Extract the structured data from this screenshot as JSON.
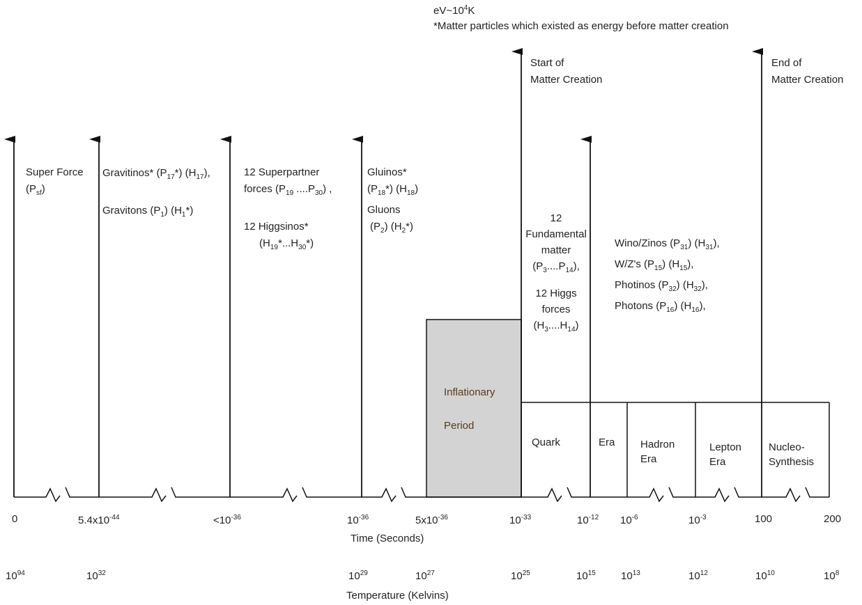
{
  "header": {
    "conversion": {
      "base": "eV~10",
      "exp": "4",
      "unit": "K"
    },
    "note": "*Matter particles which existed as energy before matter creation"
  },
  "events": {
    "start_creation": [
      "Start of",
      "Matter Creation"
    ],
    "end_creation": [
      "End of",
      "Matter Creation"
    ]
  },
  "arrow_labels": {
    "super_force": {
      "line1": "Super Force",
      "p": "(P",
      "p_sub": "sf",
      "p_end": ")"
    },
    "gravitinos": {
      "a": "Gravitinos* (P",
      "a_sub": "17",
      "b": "*) (H",
      "b_sub": "17",
      "c": "),",
      "d": "Gravitons (P",
      "d_sub": "1",
      "e": ") (H",
      "e_sub": "1",
      "f": "*)"
    },
    "superpartner": {
      "line1": "12 Superpartner",
      "a": "forces  (P",
      "a_sub": "19",
      "b": " ....P",
      "b_sub": "30",
      "c": ") ,",
      "line3": "12 Higgsinos*",
      "d": "(H",
      "d_sub": "19",
      "e": "*...H",
      "e_sub": "30",
      "f": "*)"
    },
    "gluinos": {
      "line1": "Gluinos*",
      "a": "(P",
      "a_sub": "18",
      "b": "*) (H",
      "b_sub": "18",
      "c": ")",
      "line3": "Gluons",
      "d": "(P",
      "d_sub": "2",
      "e": ") (H",
      "e_sub": "2",
      "f": "*)"
    },
    "fundamental": {
      "line1": "12",
      "line2": "Fundamental",
      "line3": "matter",
      "a": "(P",
      "a_sub": "3",
      "b": "....P",
      "b_sub": "14",
      "c": "),",
      "line5": "12 Higgs",
      "line6": "forces",
      "d": "(H",
      "d_sub": "3",
      "e": "....H",
      "e_sub": "14",
      "f": ")"
    },
    "electroweak": [
      {
        "a": "Wino/Zinos (P",
        "a_sub": "31",
        "b": ") (H",
        "b_sub": "31",
        "c": "),"
      },
      {
        "a": "W/Z's (P",
        "a_sub": "15",
        "b": ") (H",
        "b_sub": "15",
        "c": "),"
      },
      {
        "a": "Photinos (P",
        "a_sub": "32",
        "b": ") (H",
        "b_sub": "32",
        "c": "),"
      },
      {
        "a": "Photons (P",
        "a_sub": "16",
        "b": ") (H",
        "b_sub": "16",
        "c": "),"
      }
    ]
  },
  "eras": {
    "inflationary": [
      "Inflationary",
      "Period"
    ],
    "quark": "Quark",
    "era": "Era",
    "hadron": [
      "Hadron",
      "Era"
    ],
    "lepton": [
      "Lepton",
      "Era"
    ],
    "nucleo": [
      "Nucleo-",
      "Synthesis"
    ]
  },
  "time_axis": {
    "label": "Time  (Seconds)",
    "ticks": [
      {
        "base": "0",
        "exp": ""
      },
      {
        "base": "5.4x10",
        "exp": "-44"
      },
      {
        "base": "<10",
        "exp": "-36"
      },
      {
        "base": "10",
        "exp": "-36"
      },
      {
        "base": "5x10",
        "exp": "-36"
      },
      {
        "base": "10",
        "exp": "-33"
      },
      {
        "base": "10",
        "exp": "-12"
      },
      {
        "base": "10",
        "exp": "-6"
      },
      {
        "base": "10",
        "exp": "-3"
      },
      {
        "base": "100",
        "exp": ""
      },
      {
        "base": "200",
        "exp": ""
      }
    ]
  },
  "temperature_axis": {
    "label": "Temperature (Kelvins)",
    "ticks": [
      {
        "base": "10",
        "exp": "94"
      },
      {
        "base": "10",
        "exp": "32"
      },
      {
        "base": "10",
        "exp": "29"
      },
      {
        "base": "10",
        "exp": "27"
      },
      {
        "base": "10",
        "exp": "25"
      },
      {
        "base": "10",
        "exp": "15"
      },
      {
        "base": "10",
        "exp": "13"
      },
      {
        "base": "10",
        "exp": "12"
      },
      {
        "base": "10",
        "exp": "10"
      },
      {
        "base": "10",
        "exp": "8"
      }
    ]
  }
}
